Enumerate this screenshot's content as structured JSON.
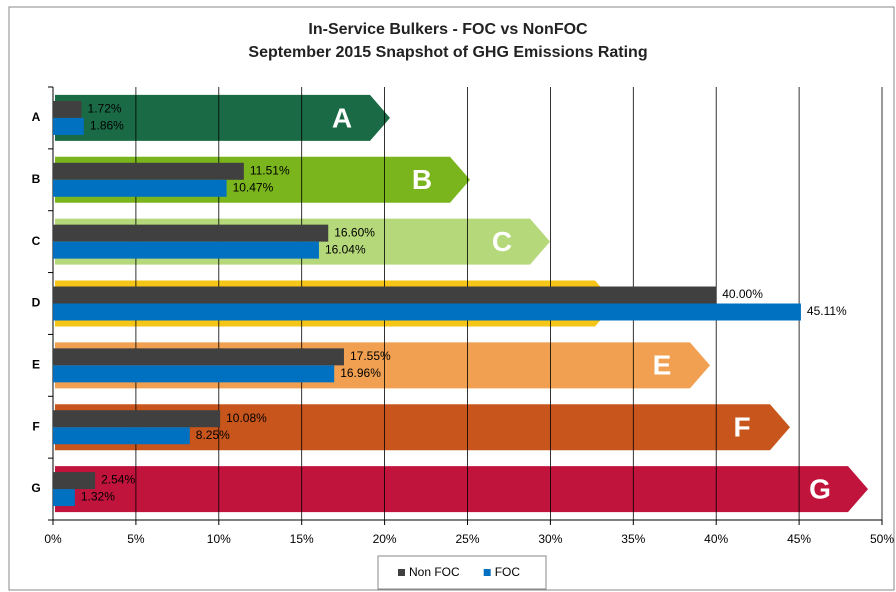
{
  "chart_data": {
    "type": "hbar",
    "title": "In-Service Bulkers - FOC vs NonFOC",
    "subtitle": "September 2015 Snapshot of GHG Emissions Rating",
    "categories": [
      "A",
      "B",
      "C",
      "D",
      "E",
      "F",
      "G"
    ],
    "series": [
      {
        "name": "Non FOC",
        "color": "#404040",
        "values": [
          1.72,
          11.51,
          16.6,
          40.0,
          17.55,
          10.08,
          2.54
        ],
        "value_labels": [
          "1.72%",
          "11.51%",
          "16.60%",
          "40.00%",
          "17.55%",
          "10.08%",
          "2.54%"
        ]
      },
      {
        "name": "FOC",
        "color": "#0070c0",
        "values": [
          1.86,
          10.47,
          16.04,
          45.11,
          16.96,
          8.25,
          1.32
        ],
        "value_labels": [
          "1.86%",
          "10.47%",
          "16.04%",
          "45.11%",
          "16.96%",
          "8.25%",
          "1.32%"
        ]
      }
    ],
    "xlim": [
      0,
      50
    ],
    "xticks": [
      {
        "value": 0,
        "label": "0%"
      },
      {
        "value": 5,
        "label": "5%"
      },
      {
        "value": 10,
        "label": "10%"
      },
      {
        "value": 15,
        "label": "15%"
      },
      {
        "value": 20,
        "label": "20%"
      },
      {
        "value": 25,
        "label": "25%"
      },
      {
        "value": 30,
        "label": "30%"
      },
      {
        "value": 35,
        "label": "35%"
      },
      {
        "value": 40,
        "label": "40%"
      },
      {
        "value": 45,
        "label": "45%"
      },
      {
        "value": 50,
        "label": "50%"
      }
    ],
    "grid": true,
    "legend": "bottom"
  }
}
